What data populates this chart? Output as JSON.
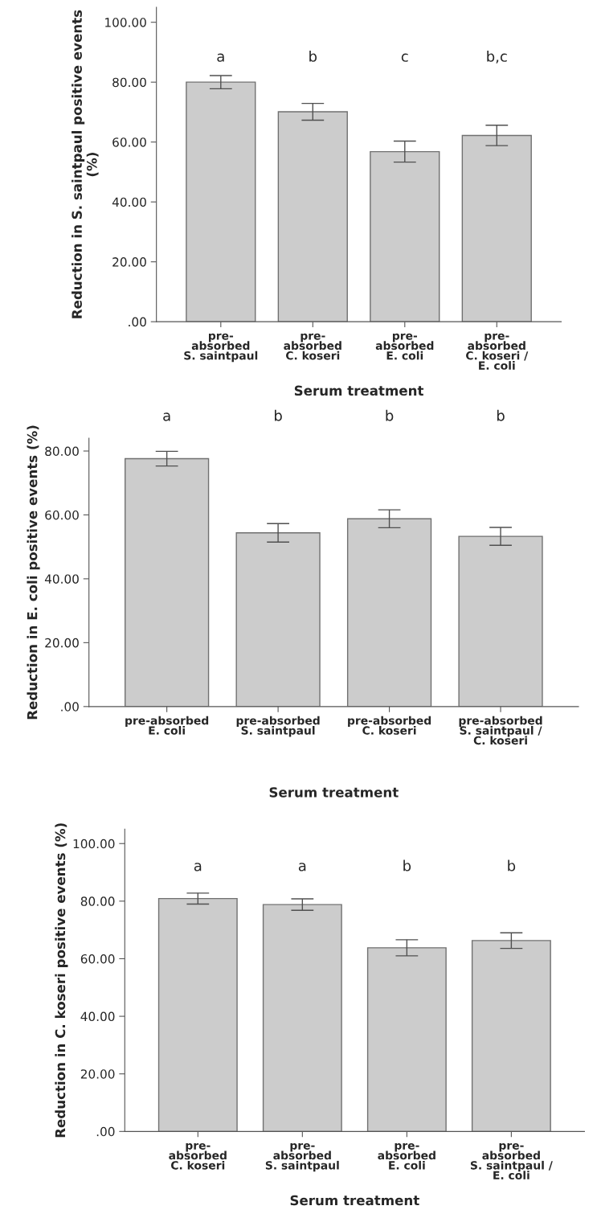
{
  "chart_data": [
    {
      "type": "bar",
      "ylabel": "Reduction in S. saintpaul positive events (%)",
      "xlabel": "Serum treatment",
      "categories": [
        "pre-\nabsorbed\nS. saintpaul",
        "pre-\nabsorbed\nC. koseri",
        "pre-\nabsorbed\nE. coli",
        "pre-\nabsorbed\nC. koseri /\nE. coli"
      ],
      "values": [
        80.0,
        70.1,
        56.8,
        62.2
      ],
      "errors": [
        2.2,
        2.8,
        3.5,
        3.4
      ],
      "color": "#cccccc",
      "ylim": [
        0,
        105
      ],
      "yticks": [
        {
          "value": 0,
          "label": ".00"
        },
        {
          "value": 20,
          "label": "20.00"
        },
        {
          "value": 40,
          "label": "40.00"
        },
        {
          "value": 60,
          "label": "60.00"
        },
        {
          "value": 80,
          "label": "80.00"
        },
        {
          "value": 100,
          "label": "100.00"
        }
      ],
      "annotations": [
        "a",
        "b",
        "c",
        "b,c"
      ]
    },
    {
      "type": "bar",
      "ylabel": "Reduction in E. coli positive events (%)",
      "xlabel": "Serum treatment",
      "categories": [
        "pre-absorbed\nE. coli",
        "pre-absorbed\nS. saintpaul",
        "pre-absorbed\nC. koseri",
        "pre-absorbed\nS. saintpaul /\nC. koseri"
      ],
      "values": [
        77.6,
        54.4,
        58.8,
        53.3
      ],
      "errors": [
        2.3,
        2.9,
        2.8,
        2.8
      ],
      "color": "#cccccc",
      "ylim": [
        0,
        84
      ],
      "yticks": [
        {
          "value": 0,
          "label": ".00"
        },
        {
          "value": 20,
          "label": "20.00"
        },
        {
          "value": 40,
          "label": "40.00"
        },
        {
          "value": 60,
          "label": "60.00"
        },
        {
          "value": 80,
          "label": "80.00"
        }
      ],
      "annotations": [
        "a",
        "b",
        "b",
        "b"
      ]
    },
    {
      "type": "bar",
      "ylabel": "Reduction in C. koseri positive events (%)",
      "xlabel": "Serum treatment",
      "categories": [
        "pre-\nabsorbed\nC. koseri",
        "pre-\nabsorbed\nS. saintpaul",
        "pre-\nabsorbed\nE. coli",
        "pre-\nabsorbed\nS. saintpaul /\nE. coli"
      ],
      "values": [
        80.9,
        78.8,
        63.8,
        66.3
      ],
      "errors": [
        1.9,
        2.0,
        2.8,
        2.7
      ],
      "color": "#cccccc",
      "ylim": [
        0,
        105
      ],
      "yticks": [
        {
          "value": 0,
          "label": ".00"
        },
        {
          "value": 20,
          "label": "20.00"
        },
        {
          "value": 40,
          "label": "40.00"
        },
        {
          "value": 60,
          "label": "60.00"
        },
        {
          "value": 80,
          "label": "80.00"
        },
        {
          "value": 100,
          "label": "100.00"
        }
      ],
      "annotations": [
        "a",
        "a",
        "b",
        "b"
      ]
    }
  ]
}
